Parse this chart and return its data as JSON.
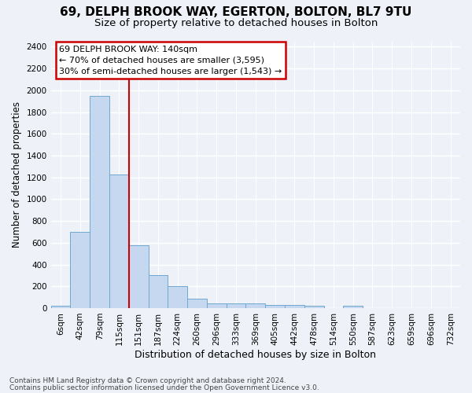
{
  "title1": "69, DELPH BROOK WAY, EGERTON, BOLTON, BL7 9TU",
  "title2": "Size of property relative to detached houses in Bolton",
  "xlabel": "Distribution of detached houses by size in Bolton",
  "ylabel": "Number of detached properties",
  "categories": [
    "6sqm",
    "42sqm",
    "79sqm",
    "115sqm",
    "151sqm",
    "187sqm",
    "224sqm",
    "260sqm",
    "296sqm",
    "333sqm",
    "369sqm",
    "405sqm",
    "442sqm",
    "478sqm",
    "514sqm",
    "550sqm",
    "587sqm",
    "623sqm",
    "659sqm",
    "696sqm",
    "732sqm"
  ],
  "values": [
    20,
    700,
    1950,
    1225,
    575,
    305,
    200,
    85,
    45,
    40,
    40,
    25,
    25,
    20,
    0,
    20,
    0,
    0,
    0,
    0,
    0
  ],
  "bar_color": "#c5d8ef",
  "bar_edge_color": "#6fa8d0",
  "vline_color": "#cc0000",
  "vline_x": 3.5,
  "annotation_line1": "69 DELPH BROOK WAY: 140sqm",
  "annotation_line2": "← 70% of detached houses are smaller (3,595)",
  "annotation_line3": "30% of semi-detached houses are larger (1,543) →",
  "ann_box_edge_color": "#cc0000",
  "ylim": [
    0,
    2450
  ],
  "yticks": [
    0,
    200,
    400,
    600,
    800,
    1000,
    1200,
    1400,
    1600,
    1800,
    2000,
    2200,
    2400
  ],
  "bg_color": "#eef2f8",
  "grid_color": "#ffffff",
  "title1_fontsize": 11,
  "title2_fontsize": 9.5,
  "ylabel_fontsize": 8.5,
  "xlabel_fontsize": 9,
  "tick_fontsize": 7.5,
  "ann_fontsize": 8,
  "footer1": "Contains HM Land Registry data © Crown copyright and database right 2024.",
  "footer2": "Contains public sector information licensed under the Open Government Licence v3.0.",
  "footer_fontsize": 6.5
}
